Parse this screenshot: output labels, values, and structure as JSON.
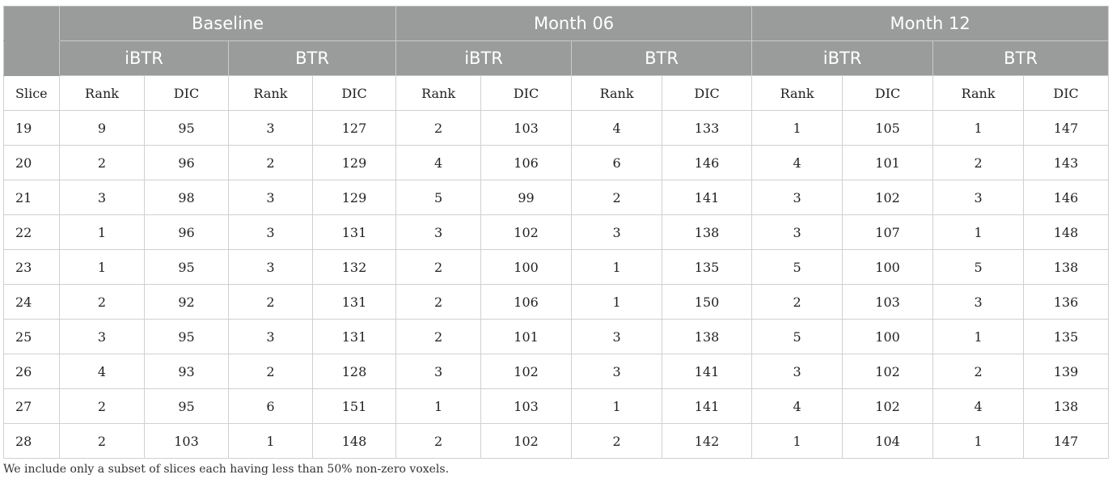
{
  "groups": [
    "Baseline",
    "Month 06",
    "Month 12"
  ],
  "subgroups": [
    "iBTR",
    "BTR",
    "iBTR",
    "BTR",
    "iBTR",
    "BTR"
  ],
  "column_labels": [
    "Slice",
    "Rank",
    "DIC",
    "Rank",
    "DIC",
    "Rank",
    "DIC",
    "Rank",
    "DIC",
    "Rank",
    "DIC",
    "Rank",
    "DIC"
  ],
  "rows": [
    [
      "19",
      "9",
      "95",
      "3",
      "127",
      "2",
      "103",
      "4",
      "133",
      "1",
      "105",
      "1",
      "147"
    ],
    [
      "20",
      "2",
      "96",
      "2",
      "129",
      "4",
      "106",
      "6",
      "146",
      "4",
      "101",
      "2",
      "143"
    ],
    [
      "21",
      "3",
      "98",
      "3",
      "129",
      "5",
      "99",
      "2",
      "141",
      "3",
      "102",
      "3",
      "146"
    ],
    [
      "22",
      "1",
      "96",
      "3",
      "131",
      "3",
      "102",
      "3",
      "138",
      "3",
      "107",
      "1",
      "148"
    ],
    [
      "23",
      "1",
      "95",
      "3",
      "132",
      "2",
      "100",
      "1",
      "135",
      "5",
      "100",
      "5",
      "138"
    ],
    [
      "24",
      "2",
      "92",
      "2",
      "131",
      "2",
      "106",
      "1",
      "150",
      "2",
      "103",
      "3",
      "136"
    ],
    [
      "25",
      "3",
      "95",
      "3",
      "131",
      "2",
      "101",
      "3",
      "138",
      "5",
      "100",
      "1",
      "135"
    ],
    [
      "26",
      "4",
      "93",
      "2",
      "128",
      "3",
      "102",
      "3",
      "141",
      "3",
      "102",
      "2",
      "139"
    ],
    [
      "27",
      "2",
      "95",
      "6",
      "151",
      "1",
      "103",
      "1",
      "141",
      "4",
      "102",
      "4",
      "138"
    ],
    [
      "28",
      "2",
      "103",
      "1",
      "148",
      "2",
      "102",
      "2",
      "142",
      "1",
      "104",
      "1",
      "147"
    ]
  ],
  "footnote": "We include only a subset of slices each having less than 50% non-zero voxels."
}
